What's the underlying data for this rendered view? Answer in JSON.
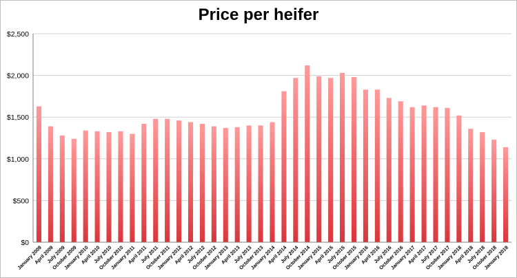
{
  "chart_data": {
    "type": "bar",
    "title": "Price per heifer",
    "xlabel": "",
    "ylabel": "",
    "ylim": [
      0,
      2500
    ],
    "y_ticks": [
      {
        "value": 0,
        "label": "$0"
      },
      {
        "value": 500,
        "label": "$500"
      },
      {
        "value": 1000,
        "label": "$1,000"
      },
      {
        "value": 1500,
        "label": "$1,500"
      },
      {
        "value": 2000,
        "label": "$2,000"
      },
      {
        "value": 2500,
        "label": "$2,500"
      }
    ],
    "grid": true,
    "legend": "none",
    "colors": {
      "bar_top": "#ff9a9a",
      "bar_bottom": "#d9363c",
      "grid": "#d0d0d0",
      "axis": "#808080"
    },
    "categories": [
      "January 2009",
      "April 2009",
      "July 2009",
      "October 2009",
      "January 2010",
      "April 2010",
      "July 2010",
      "October 2010",
      "January 2011",
      "April 2011",
      "July 2011",
      "October 2011",
      "January 2012",
      "April 2012",
      "July 2012",
      "October 2012",
      "January 2013",
      "April 2013",
      "July 2013",
      "October 2013",
      "January 2014",
      "April 2014",
      "July 2014",
      "October 2014",
      "January 2015",
      "April 2015",
      "July 2015",
      "October 2015",
      "January 2016",
      "April 2016",
      "July 2016",
      "October 2016",
      "January 2017",
      "April 2017",
      "July 2017",
      "October 2017",
      "January 2018",
      "April 2018",
      "July 2018",
      "October 2018",
      "January 2019"
    ],
    "values": [
      1630,
      1390,
      1280,
      1240,
      1340,
      1330,
      1320,
      1330,
      1300,
      1420,
      1480,
      1480,
      1460,
      1440,
      1420,
      1390,
      1370,
      1380,
      1400,
      1400,
      1440,
      1810,
      1970,
      2120,
      1990,
      1970,
      2030,
      1980,
      1830,
      1830,
      1730,
      1690,
      1620,
      1640,
      1620,
      1610,
      1520,
      1360,
      1320,
      1230,
      1140
    ]
  }
}
